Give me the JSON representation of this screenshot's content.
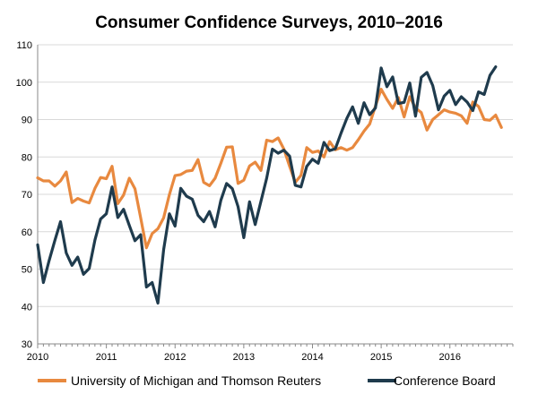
{
  "chart_data": {
    "type": "line",
    "title": "Consumer Confidence Surveys, 2010–2016",
    "xlabel": "",
    "ylabel": "",
    "ylim": [
      30,
      110
    ],
    "yticks": [
      "30",
      "40",
      "50",
      "60",
      "70",
      "80",
      "90",
      "100",
      "110"
    ],
    "xlim": [
      2010,
      2016.917
    ],
    "xticks": [
      "2010",
      "2011",
      "2012",
      "2013",
      "2014",
      "2015",
      "2016"
    ],
    "grid": true,
    "legend_position": "bottom",
    "x_start": 2010,
    "x_step_months": 1,
    "series": [
      {
        "name": "University of Michigan and Thomson Reuters",
        "color": "#E8893F",
        "values": [
          74.4,
          73.6,
          73.6,
          72.2,
          73.6,
          76.0,
          67.8,
          68.9,
          68.2,
          67.7,
          71.6,
          74.5,
          74.2,
          77.5,
          67.5,
          69.8,
          74.3,
          71.5,
          63.7,
          55.7,
          59.5,
          60.8,
          63.7,
          69.9,
          75.0,
          75.3,
          76.2,
          76.4,
          79.3,
          73.2,
          72.3,
          74.3,
          78.3,
          82.6,
          82.7,
          72.9,
          73.8,
          77.6,
          78.6,
          76.4,
          84.5,
          84.1,
          85.1,
          82.1,
          77.5,
          73.2,
          75.1,
          82.5,
          81.2,
          81.6,
          80.0,
          84.1,
          81.9,
          82.5,
          81.8,
          82.5,
          84.6,
          86.9,
          88.8,
          93.6,
          98.1,
          95.4,
          93.0,
          95.9,
          90.7,
          96.1,
          93.1,
          91.9,
          87.2,
          90.0,
          91.3,
          92.6,
          92.0,
          91.7,
          91.0,
          89.0,
          94.7,
          93.5,
          90.0,
          89.8,
          91.2,
          87.9
        ],
        "legend_label": "University of Michigan and Thomson Reuters"
      },
      {
        "name": "Conference Board",
        "color": "#1F3B4D",
        "values": [
          56.5,
          46.4,
          52.3,
          57.7,
          62.7,
          54.3,
          51.0,
          53.2,
          48.6,
          50.2,
          57.8,
          63.4,
          64.8,
          72.0,
          63.8,
          66.0,
          61.7,
          57.6,
          59.2,
          45.2,
          46.4,
          40.9,
          55.2,
          64.8,
          61.5,
          71.6,
          69.5,
          68.7,
          64.4,
          62.7,
          65.4,
          61.3,
          68.4,
          72.9,
          71.5,
          66.7,
          58.4,
          68.0,
          61.9,
          68.1,
          74.3,
          82.1,
          81.0,
          81.8,
          80.2,
          72.4,
          72.0,
          77.5,
          79.4,
          78.3,
          83.9,
          81.7,
          82.2,
          86.4,
          90.3,
          93.4,
          89.0,
          94.5,
          91.3,
          93.1,
          103.8,
          98.8,
          101.4,
          94.3,
          94.6,
          99.8,
          90.9,
          101.3,
          102.6,
          99.1,
          92.6,
          96.3,
          97.8,
          94.0,
          96.1,
          94.7,
          92.4,
          97.4,
          96.7,
          101.8,
          104.1
        ]
      }
    ]
  }
}
